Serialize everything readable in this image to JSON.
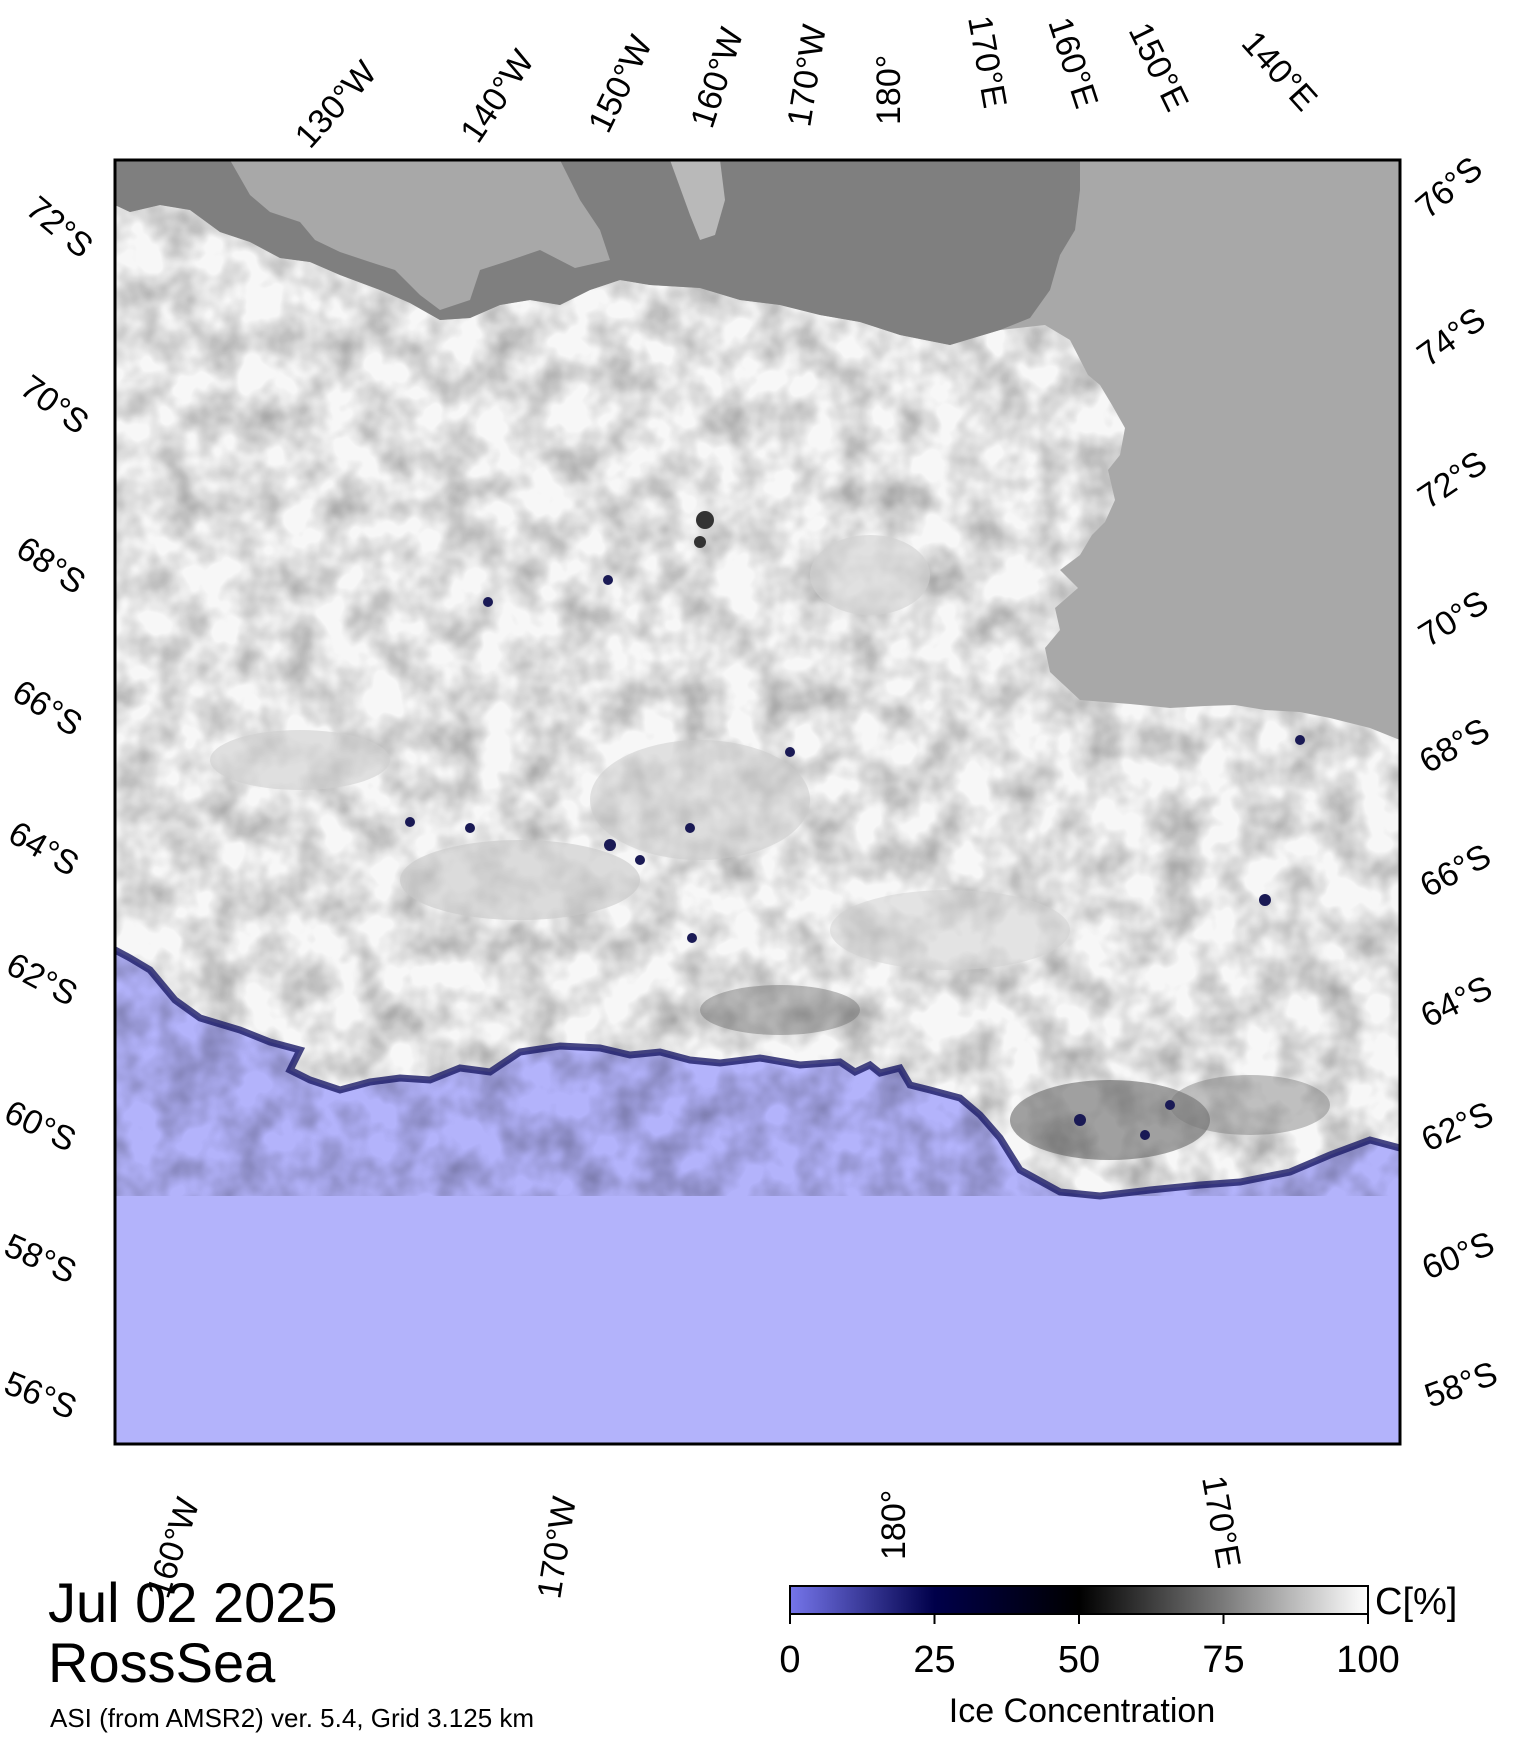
{
  "date": "Jul 02 2025",
  "region": "RossSea",
  "product": "ASI (from AMSR2) ver. 5.4,  Grid 3.125 km",
  "colorbar": {
    "title": "Ice Concentration",
    "unit": "C[%]",
    "ticks": [
      "0",
      "25",
      "50",
      "75",
      "100"
    ],
    "stops": [
      "#7575ea",
      "#00004a",
      "#000000",
      "#7a7a7a",
      "#ffffff"
    ]
  },
  "colors": {
    "ocean": "#b3b3fb",
    "ice": "#f7f7f7",
    "land": "#a8a8a8",
    "ice_shelf": "#7f7f7f",
    "graticule": "#000000"
  },
  "longitude_labels_top": [
    "130°W",
    "140°W",
    "150°W",
    "160°W",
    "170°W",
    "180°",
    "170°E",
    "160°E",
    "150°E",
    "140°E"
  ],
  "longitude_labels_bottom": [
    "160°W",
    "170°W",
    "180°",
    "170°E"
  ],
  "latitude_labels_left": [
    "72°S",
    "70°S",
    "68°S",
    "66°S",
    "64°S",
    "62°S",
    "60°S",
    "58°S",
    "56°S"
  ],
  "latitude_labels_right": [
    "76°S",
    "74°S",
    "72°S",
    "70°S",
    "68°S",
    "66°S",
    "64°S",
    "62°S",
    "60°S",
    "58°S"
  ]
}
